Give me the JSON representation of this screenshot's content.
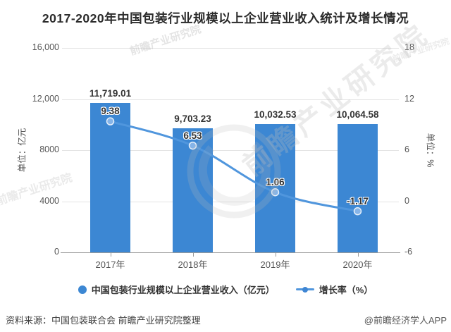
{
  "title": "2017-2020年中国包装行业规模以上企业营业收入统计及增长情况",
  "chart_data": {
    "type": "combo-bar-line",
    "categories": [
      "2017年",
      "2018年",
      "2019年",
      "2020年"
    ],
    "series": [
      {
        "name": "中国包装行业规模以上企业营业收入（亿元）",
        "type": "bar",
        "axis": "left",
        "values": [
          11719.01,
          9703.23,
          10032.53,
          10064.58
        ],
        "labels": [
          "11,719.01",
          "9,703.23",
          "10,032.53",
          "10,064.58"
        ]
      },
      {
        "name": "增长率（%）",
        "type": "line",
        "axis": "right",
        "values": [
          9.38,
          6.53,
          1.06,
          -1.17
        ],
        "labels": [
          "9.38",
          "6.53",
          "1.06",
          "-1.17"
        ]
      }
    ],
    "left_axis": {
      "name": "单位：亿元",
      "min": 0,
      "max": 16000,
      "ticks": [
        "16,000",
        "12,000",
        "8000",
        "4000",
        "0"
      ]
    },
    "right_axis": {
      "name": "单位：%",
      "min": -6,
      "max": 18,
      "ticks": [
        "18",
        "12",
        "6",
        "0",
        "-6"
      ]
    },
    "grid": true,
    "legend_position": "bottom"
  },
  "colors": {
    "bar": "#3c87d3",
    "line": "#5096dd",
    "point": "#85b4e8",
    "gridline": "#e4e4e4",
    "axis": "#9a9a9a",
    "tick_text": "#555555",
    "label_text": "#333333"
  },
  "footer": {
    "source": "资料来源：中国包装联合会 前瞻产业研究院整理",
    "brand": "@前瞻经济学人APP"
  },
  "watermark": {
    "text": "前瞻产业研究院"
  }
}
